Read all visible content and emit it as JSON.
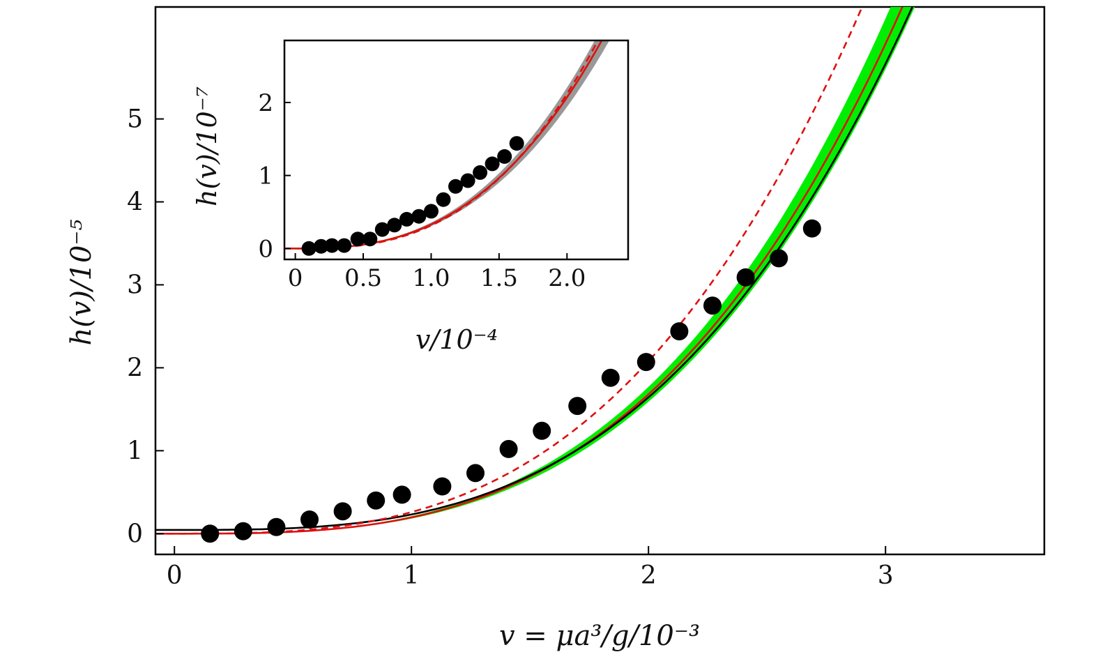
{
  "chart_data": [
    {
      "type": "scatter",
      "role": "main",
      "xlabel": "v = μa³/g/10⁻³",
      "ylabel": "h(v)/10⁻⁵",
      "xlim": [
        -0.08,
        3.67
      ],
      "ylim": [
        -0.25,
        6.35
      ],
      "xticks": [
        0,
        1,
        2,
        3
      ],
      "xtick_labels": [
        "0",
        "1",
        "2",
        "3"
      ],
      "yticks": [
        0,
        1,
        2,
        3,
        4,
        5
      ],
      "ytick_labels": [
        "0",
        "1",
        "2",
        "3",
        "4",
        "5"
      ],
      "points": {
        "x": [
          0.15,
          0.29,
          0.43,
          0.57,
          0.71,
          0.85,
          0.96,
          1.13,
          1.27,
          1.41,
          1.55,
          1.7,
          1.84,
          1.99,
          2.13,
          2.27,
          2.41,
          2.55,
          2.69
        ],
        "y": [
          0.0,
          0.03,
          0.08,
          0.17,
          0.27,
          0.4,
          0.47,
          0.57,
          0.73,
          1.02,
          1.24,
          1.54,
          1.88,
          2.07,
          2.44,
          2.75,
          3.09,
          3.32,
          3.68
        ]
      },
      "series": [
        {
          "name": "green band (central curve)",
          "color": "#00ee00",
          "style": "band",
          "coef": 0.196,
          "power": 3.1,
          "band_halfwidth_rel": 0.05
        },
        {
          "name": "red solid",
          "color": "#dd1111",
          "style": "solid",
          "coef": 0.196,
          "power": 3.1
        },
        {
          "name": "black solid",
          "color": "#000000",
          "style": "solid",
          "coef": 0.1865,
          "power": 3.1,
          "offset": 0.045
        },
        {
          "name": "red dashed",
          "color": "#dd1111",
          "style": "dashed",
          "coef": 0.26,
          "power": 3.0
        }
      ]
    },
    {
      "type": "scatter",
      "role": "inset",
      "xlabel": "v/10⁻⁴",
      "ylabel": "h(v)/10⁻⁷",
      "xlim": [
        -0.08,
        2.45
      ],
      "ylim": [
        -0.15,
        2.85
      ],
      "xticks": [
        0,
        0.5,
        1.0,
        1.5,
        2.0
      ],
      "xtick_labels": [
        "0",
        "0.5",
        "1.0",
        "1.5",
        "2.0"
      ],
      "yticks": [
        0,
        1,
        2
      ],
      "ytick_labels": [
        "0",
        "1",
        "2"
      ],
      "points": {
        "x": [
          0.1,
          0.19,
          0.27,
          0.36,
          0.46,
          0.55,
          0.64,
          0.73,
          0.82,
          0.91,
          1.0,
          1.09,
          1.18,
          1.27,
          1.36,
          1.45,
          1.54,
          1.63
        ],
        "y": [
          0.0,
          0.03,
          0.04,
          0.04,
          0.13,
          0.13,
          0.26,
          0.32,
          0.4,
          0.44,
          0.51,
          0.67,
          0.85,
          0.93,
          1.04,
          1.16,
          1.26,
          1.44
        ]
      },
      "series": [
        {
          "name": "grey band",
          "color": "#999999",
          "style": "band",
          "coef": 0.33,
          "power": 2.65,
          "band_halfwidth_rel": 0.06
        },
        {
          "name": "green curve",
          "color": "#33cc33",
          "style": "solid",
          "coef": 0.33,
          "power": 2.65
        },
        {
          "name": "red dashed",
          "color": "#dd1111",
          "style": "dashed",
          "coef": 0.315,
          "power": 2.75
        },
        {
          "name": "red solid",
          "color": "#dd1111",
          "style": "solid",
          "coef": 0.33,
          "power": 2.65
        }
      ]
    }
  ]
}
